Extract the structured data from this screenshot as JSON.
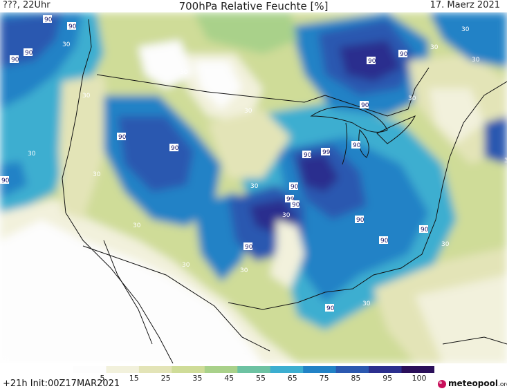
{
  "header": {
    "left": "???, 22Uhr",
    "title": "700hPa Relative Feuchte [%]",
    "right": "17. Maerz 2021"
  },
  "legend": {
    "ticks": [
      "5",
      "15",
      "25",
      "35",
      "45",
      "55",
      "65",
      "75",
      "85",
      "95",
      "100"
    ],
    "colors": [
      "#fdfdfd",
      "#f2f1dc",
      "#e3e4b7",
      "#cfdc98",
      "#a9d18a",
      "#6dc2a2",
      "#3caed0",
      "#2182c6",
      "#2b58b0",
      "#2b2f8e",
      "#2a0f5a"
    ]
  },
  "footer": {
    "init": "+21h  Init:00Z17MAR2021",
    "brand": "meteopool",
    "brand_suffix": ".org"
  },
  "map_labels": [
    {
      "text": "90",
      "kind": "high"
    },
    {
      "text": "90",
      "kind": "high"
    },
    {
      "text": "90",
      "kind": "high"
    },
    {
      "text": "90",
      "kind": "high"
    },
    {
      "text": "90",
      "kind": "high"
    },
    {
      "text": "90",
      "kind": "high"
    },
    {
      "text": "90",
      "kind": "high"
    },
    {
      "text": "90",
      "kind": "high"
    },
    {
      "text": "90",
      "kind": "high"
    },
    {
      "text": "90",
      "kind": "high"
    },
    {
      "text": "99",
      "kind": "high"
    },
    {
      "text": "90",
      "kind": "high"
    },
    {
      "text": "99",
      "kind": "high"
    },
    {
      "text": "90",
      "kind": "high"
    },
    {
      "text": "90",
      "kind": "high"
    },
    {
      "text": "90",
      "kind": "high"
    },
    {
      "text": "90",
      "kind": "high"
    },
    {
      "text": "90",
      "kind": "high"
    },
    {
      "text": "90",
      "kind": "high"
    },
    {
      "text": "90",
      "kind": "high"
    },
    {
      "text": "90",
      "kind": "high"
    },
    {
      "text": "30",
      "kind": "low"
    },
    {
      "text": "30",
      "kind": "low"
    },
    {
      "text": "30",
      "kind": "low"
    },
    {
      "text": "30",
      "kind": "low"
    },
    {
      "text": "30",
      "kind": "low"
    },
    {
      "text": "30",
      "kind": "low"
    },
    {
      "text": "30",
      "kind": "low"
    },
    {
      "text": "30",
      "kind": "low"
    },
    {
      "text": "30",
      "kind": "low"
    },
    {
      "text": "30",
      "kind": "low"
    },
    {
      "text": "30",
      "kind": "low"
    },
    {
      "text": "30",
      "kind": "low"
    },
    {
      "text": "30",
      "kind": "low"
    },
    {
      "text": "30",
      "kind": "low"
    },
    {
      "text": "30",
      "kind": "low"
    },
    {
      "text": "30",
      "kind": "low"
    },
    {
      "text": "30",
      "kind": "low"
    },
    {
      "text": "30",
      "kind": "low"
    }
  ]
}
